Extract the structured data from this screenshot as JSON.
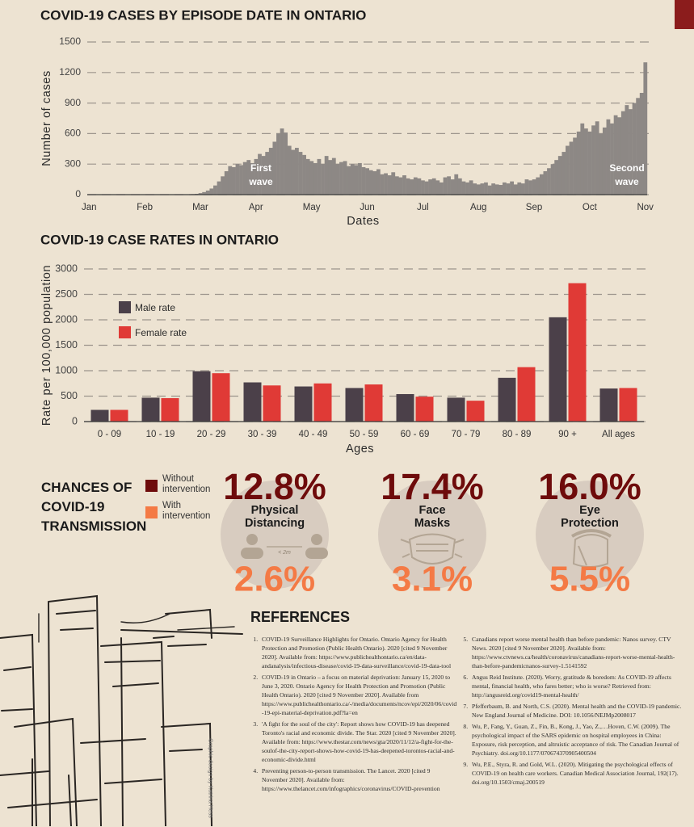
{
  "chart_data": [
    {
      "type": "bar",
      "title": "COVID-19 CASES BY EPISODE DATE IN ONTARIO",
      "xlabel": "Dates",
      "ylabel": "Number of cases",
      "categories": [
        "Jan",
        null,
        null,
        null,
        null,
        null,
        null,
        null,
        null,
        null,
        null,
        null,
        null,
        null,
        null,
        "Feb",
        null,
        null,
        null,
        null,
        null,
        null,
        null,
        null,
        null,
        null,
        null,
        null,
        null,
        null,
        "Mar",
        null,
        null,
        null,
        null,
        null,
        null,
        null,
        null,
        null,
        null,
        null,
        null,
        null,
        null,
        "Apr",
        null,
        null,
        null,
        null,
        null,
        null,
        null,
        null,
        null,
        null,
        null,
        null,
        null,
        null,
        "May",
        null,
        null,
        null,
        null,
        null,
        null,
        null,
        null,
        null,
        null,
        null,
        null,
        null,
        null,
        "Jun",
        null,
        null,
        null,
        null,
        null,
        null,
        null,
        null,
        null,
        null,
        null,
        null,
        null,
        null,
        "Jul",
        null,
        null,
        null,
        null,
        null,
        null,
        null,
        null,
        null,
        null,
        null,
        null,
        null,
        null,
        "Aug",
        null,
        null,
        null,
        null,
        null,
        null,
        null,
        null,
        null,
        null,
        null,
        null,
        null,
        null,
        "Sep",
        null,
        null,
        null,
        null,
        null,
        null,
        null,
        null,
        null,
        null,
        null,
        null,
        null,
        null,
        "Oct",
        null,
        null,
        null,
        null,
        null,
        null,
        null,
        null,
        null,
        null,
        null,
        null,
        null,
        null,
        "Nov"
      ],
      "values": [
        0,
        0,
        0,
        0,
        0,
        0,
        0,
        0,
        0,
        0,
        0,
        0,
        0,
        0,
        0,
        0,
        0,
        0,
        0,
        0,
        0,
        0,
        0,
        0,
        0,
        1,
        2,
        3,
        5,
        8,
        15,
        25,
        40,
        60,
        90,
        130,
        180,
        230,
        280,
        270,
        300,
        290,
        320,
        340,
        310,
        350,
        400,
        380,
        420,
        460,
        520,
        600,
        650,
        610,
        480,
        440,
        460,
        420,
        390,
        350,
        330,
        310,
        350,
        300,
        380,
        340,
        360,
        300,
        320,
        330,
        280,
        300,
        290,
        310,
        270,
        260,
        240,
        230,
        250,
        200,
        210,
        190,
        220,
        180,
        170,
        190,
        160,
        150,
        170,
        160,
        140,
        130,
        150,
        160,
        140,
        120,
        170,
        180,
        150,
        200,
        160,
        130,
        120,
        140,
        110,
        100,
        110,
        120,
        90,
        110,
        100,
        95,
        120,
        110,
        130,
        100,
        120,
        110,
        150,
        140,
        150,
        170,
        200,
        230,
        260,
        300,
        340,
        380,
        420,
        480,
        520,
        560,
        620,
        700,
        650,
        620,
        680,
        720,
        600,
        660,
        740,
        700,
        780,
        760,
        820,
        880,
        840,
        900,
        950,
        1000,
        1300
      ],
      "color": "#8d8885",
      "ylim": [
        0,
        1500
      ],
      "yticks": [
        0,
        300,
        600,
        900,
        1200,
        1500
      ],
      "grid": true,
      "annotations": [
        "First wave",
        "Second wave"
      ]
    },
    {
      "type": "bar",
      "title": "COVID-19 CASE RATES IN ONTARIO",
      "xlabel": "Ages",
      "ylabel": "Rate per 100,000 population",
      "categories": [
        "0 - 09",
        "10 - 19",
        "20 - 29",
        "30 - 39",
        "40 - 49",
        "50 - 59",
        "60 - 69",
        "70 - 79",
        "80 - 89",
        "90 +",
        "All ages"
      ],
      "series": [
        {
          "name": "Male rate",
          "color": "#4b4049",
          "values": [
            230,
            470,
            990,
            770,
            690,
            660,
            540,
            470,
            860,
            2050,
            650
          ]
        },
        {
          "name": "Female rate",
          "color": "#e03a36",
          "values": [
            230,
            460,
            950,
            710,
            750,
            730,
            490,
            410,
            1070,
            2720,
            660
          ]
        }
      ],
      "ylim": [
        0,
        3000
      ],
      "yticks": [
        0,
        500,
        1000,
        1500,
        2000,
        2500,
        3000
      ],
      "grid": true,
      "legend": "upper left"
    }
  ],
  "transmission": {
    "title": "CHANCES OF COVID-19 TRANSMISSION",
    "legend": [
      {
        "label": "Without intervention",
        "color": "#6e0b0b"
      },
      {
        "label": "With intervention",
        "color": "#f47a45"
      }
    ],
    "items": [
      {
        "label": "Physical Distancing",
        "without": "12.8%",
        "with": "2.6%"
      },
      {
        "label": "Face Masks",
        "without": "17.4%",
        "with": "3.1%"
      },
      {
        "label": "Eye Protection",
        "without": "16.0%",
        "with": "5.5%"
      }
    ],
    "distance_label": "< 2m"
  },
  "references": {
    "title": "REFERENCES",
    "items": [
      "COVID-19 Surveillance Highlights for Ontario. Ontario Agency for Health Protection and Promotion (Public Health Ontario). 2020 [cited 9 November 2020]. Available from: https://www.publichealthontario.ca/en/data-andanalysis/infectious-disease/covid-19-data-surveillance/covid-19-data-tool",
      "COVID-19 in Ontario – a focus on material deprivation: January 15, 2020 to June 3, 2020. Ontario Agency for Health Protection and Promotion (Public Health Ontario). 2020 [cited 9 November 2020]. Available from https://www.publichealthontario.ca/-/media/documents/ncov/epi/2020/06/covid-19-epi-material-deprivation.pdf?la=en",
      "'A fight for the soul of the city': Report shows how COVID-19 has deepened Toronto's racial and economic divide. The Star. 2020 [cited 9 November 2020]. Available from: https://www.thestar.com/news/gta/2020/11/12/a-fight-for-the-soulof-the-city-report-shows-how-covid-19-has-deepened-torontos-racial-and-economic-divide.html",
      "Preventing person-to-person transmission. The Lancet. 2020 [cited 9 November 2020]. Available from: https://www.thelancet.com/infographics/coronavirus/COVID-prevention",
      "Canadians report worse mental health than before pandemic: Nanos survey. CTV News. 2020 [cited 9 November 2020]. Available from: https://www.ctvnews.ca/health/coronavirus/canadians-report-worse-mental-health-than-before-pandemicnanos-survey-1.5141592",
      "Angus Reid Institute. (2020). Worry, gratitude & boredom: As COVID-19 affects mental, financial health, who fares better; who is worse? Retrieved from: http://angusreid.org/covid19-mental-health/",
      "Pfefferbaum, B. and North, C.S. (2020). Mental health and the COVID-19 pandemic. New England Journal of Medicine. DOI: 10.1056/NEJMp2008017",
      "Wu, P., Fang, Y., Guan, Z., Fin, B., Kong, J., Yao, Z.,…Hoven, C.W. (2009). The psychological impact of the SARS epidemic on hospital employees in China: Exposure, risk perception, and altruistic acceptance of risk. The Canadian Journal of Psychiatry. doi.org/10.1177/070674370905400504",
      "Wu, P.E., Styra, R. and Gold, W.L. (2020). Mitigating the psychological effects of COVID-19 on health care workers. Canadian Medical Association Journal, 192(17). doi.org/10.1503/cmaj.200519"
    ]
  },
  "credit": "Graphic design by Katrina Hess"
}
